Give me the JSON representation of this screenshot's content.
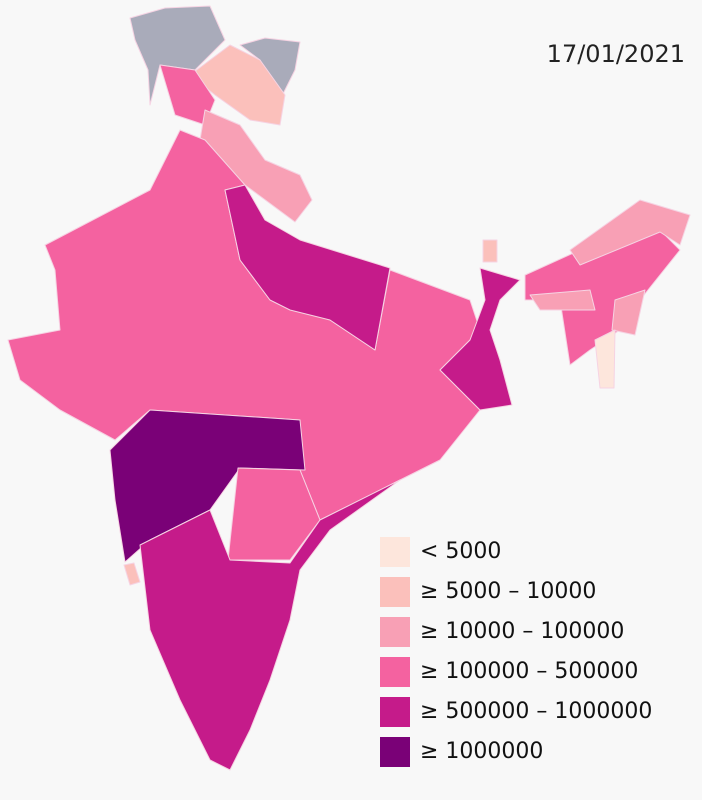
{
  "date": "17/01/2021",
  "legend": [
    {
      "label": "< 5000",
      "color": "#fde6dc"
    },
    {
      "label": "≥ 5000 – 10000",
      "color": "#fbc0bb"
    },
    {
      "label": "≥ 10000 – 100000",
      "color": "#f8a0b5"
    },
    {
      "label": "≥ 100000 – 500000",
      "color": "#f462a0"
    },
    {
      "label": "≥ 500000 – 1000000",
      "color": "#c51b8a"
    },
    {
      "label": "≥ 1000000",
      "color": "#7a0177"
    }
  ],
  "disputed_color": "#a9abba"
}
